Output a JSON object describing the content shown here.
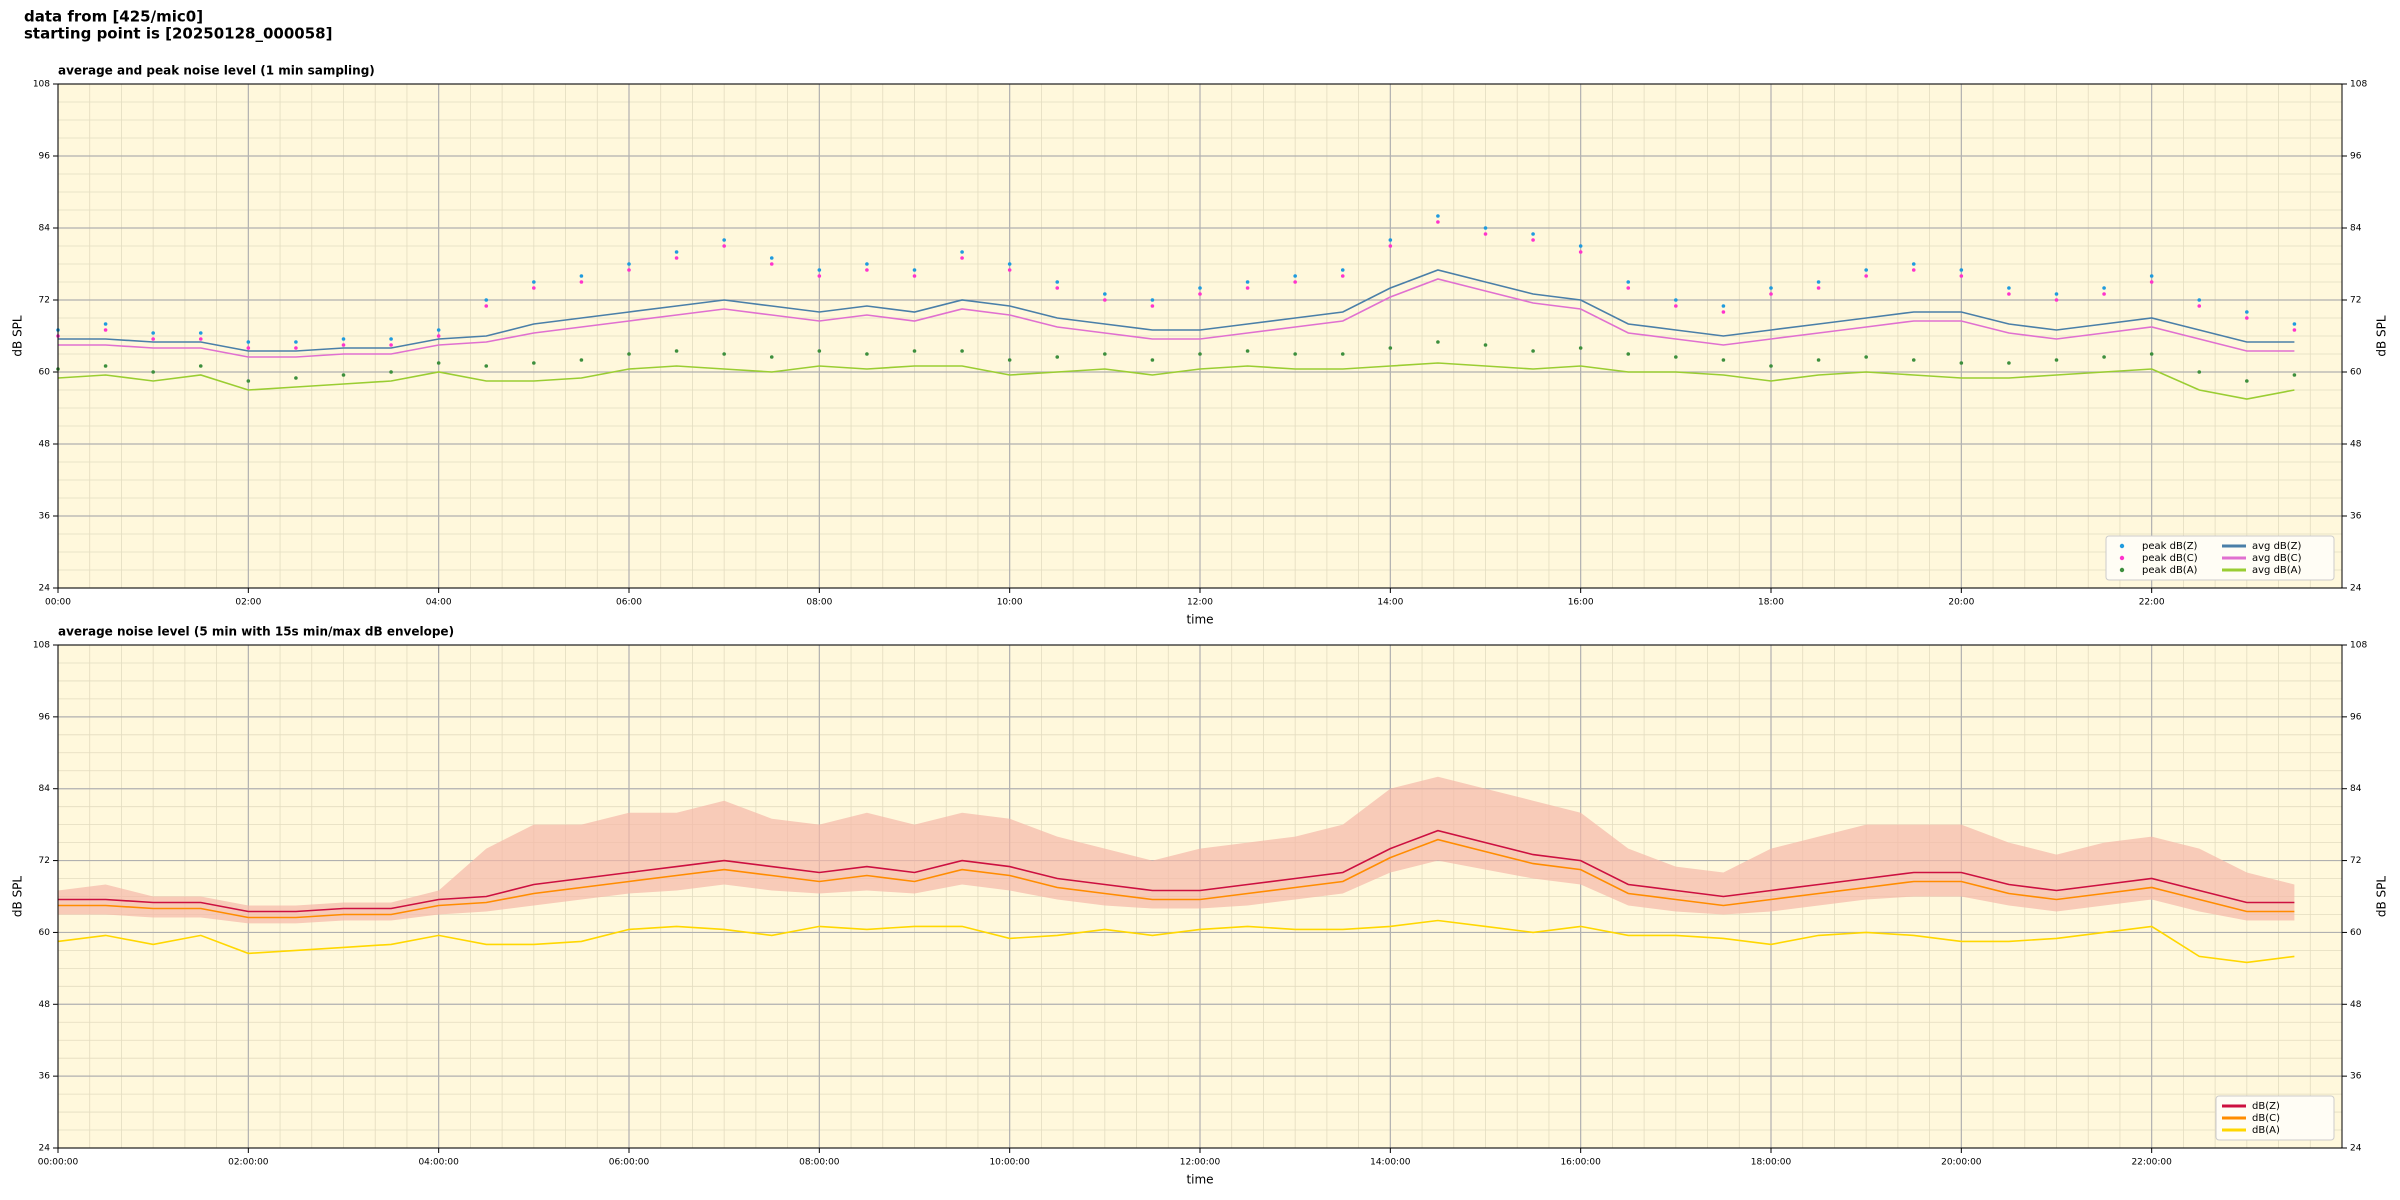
{
  "header": {
    "line1": "data from [425/mic0]",
    "line2": "starting point is [20250128_000058]"
  },
  "chart_data": [
    {
      "type": "line",
      "title": "average and peak noise level (1 min sampling)",
      "x_label": "time",
      "y_label": "dB SPL",
      "mirror_y": true,
      "grid": true,
      "minor_grid": true,
      "background": "#fff8dc",
      "legend": "lower right",
      "legend_columns": 2,
      "xlim": [
        0,
        24
      ],
      "ylim": [
        24,
        108
      ],
      "xticks": [
        {
          "value": 0,
          "label": "00:00"
        },
        {
          "value": 2,
          "label": "02:00"
        },
        {
          "value": 4,
          "label": "04:00"
        },
        {
          "value": 6,
          "label": "06:00"
        },
        {
          "value": 8,
          "label": "08:00"
        },
        {
          "value": 10,
          "label": "10:00"
        },
        {
          "value": 12,
          "label": "12:00"
        },
        {
          "value": 14,
          "label": "14:00"
        },
        {
          "value": 16,
          "label": "16:00"
        },
        {
          "value": 18,
          "label": "18:00"
        },
        {
          "value": 20,
          "label": "20:00"
        },
        {
          "value": 22,
          "label": "22:00"
        }
      ],
      "yticks": [
        24,
        36,
        48,
        60,
        72,
        84,
        96,
        108
      ],
      "x": [
        0,
        0.5,
        1,
        1.5,
        2,
        2.5,
        3,
        3.5,
        4,
        4.5,
        5,
        5.5,
        6,
        6.5,
        7,
        7.5,
        8,
        8.5,
        9,
        9.5,
        10,
        10.5,
        11,
        11.5,
        12,
        12.5,
        13,
        13.5,
        14,
        14.5,
        15,
        15.5,
        16,
        16.5,
        17,
        17.5,
        18,
        18.5,
        19,
        19.5,
        20,
        20.5,
        21,
        21.5,
        22,
        22.5,
        23,
        23.5
      ],
      "series": [
        {
          "name": "peak dB(Z)",
          "style": "dots",
          "color": "#1f9bde",
          "values": [
            67,
            68,
            66.5,
            66.5,
            65,
            65,
            65.5,
            65.5,
            67,
            72,
            75,
            76,
            78,
            80,
            82,
            79,
            77,
            78,
            77,
            80,
            78,
            75,
            73,
            72,
            74,
            75,
            76,
            77,
            82,
            86,
            84,
            83,
            81,
            75,
            72,
            71,
            74,
            75,
            77,
            78,
            77,
            74,
            73,
            74,
            76,
            72,
            70,
            68
          ]
        },
        {
          "name": "peak dB(C)",
          "style": "dots",
          "color": "#ff33cc",
          "values": [
            66,
            67,
            65.5,
            65.5,
            64,
            64,
            64.5,
            64.5,
            66,
            71,
            74,
            75,
            77,
            79,
            81,
            78,
            76,
            77,
            76,
            79,
            77,
            74,
            72,
            71,
            73,
            74,
            75,
            76,
            81,
            85,
            83,
            82,
            80,
            74,
            71,
            70,
            73,
            74,
            76,
            77,
            76,
            73,
            72,
            73,
            75,
            71,
            69,
            67
          ]
        },
        {
          "name": "peak dB(A)",
          "style": "dots",
          "color": "#3d8f3d",
          "values": [
            60.5,
            61,
            60,
            61,
            58.5,
            59,
            59.5,
            60,
            61.5,
            61,
            61.5,
            62,
            63,
            63.5,
            63,
            62.5,
            63.5,
            63,
            63.5,
            63.5,
            62,
            62.5,
            63,
            62,
            63,
            63.5,
            63,
            63,
            64,
            65,
            64.5,
            63.5,
            64,
            63,
            62.5,
            62,
            61,
            62,
            62.5,
            62,
            61.5,
            61.5,
            62,
            62.5,
            63,
            60,
            58.5,
            59.5
          ]
        },
        {
          "name": "avg dB(Z)",
          "style": "line",
          "color": "#4a7fa8",
          "values": [
            65.5,
            65.5,
            65,
            65,
            63.5,
            63.5,
            64,
            64,
            65.5,
            66,
            68,
            69,
            70,
            71,
            72,
            71,
            70,
            71,
            70,
            72,
            71,
            69,
            68,
            67,
            67,
            68,
            69,
            70,
            74,
            77,
            75,
            73,
            72,
            68,
            67,
            66,
            67,
            68,
            69,
            70,
            70,
            68,
            67,
            68,
            69,
            67,
            65,
            65
          ]
        },
        {
          "name": "avg dB(C)",
          "style": "line",
          "color": "#e070d0",
          "values": [
            64.5,
            64.5,
            64,
            64,
            62.5,
            62.5,
            63,
            63,
            64.5,
            65,
            66.5,
            67.5,
            68.5,
            69.5,
            70.5,
            69.5,
            68.5,
            69.5,
            68.5,
            70.5,
            69.5,
            67.5,
            66.5,
            65.5,
            65.5,
            66.5,
            67.5,
            68.5,
            72.5,
            75.5,
            73.5,
            71.5,
            70.5,
            66.5,
            65.5,
            64.5,
            65.5,
            66.5,
            67.5,
            68.5,
            68.5,
            66.5,
            65.5,
            66.5,
            67.5,
            65.5,
            63.5,
            63.5
          ]
        },
        {
          "name": "avg dB(A)",
          "style": "line",
          "color": "#9acd32",
          "values": [
            59,
            59.5,
            58.5,
            59.5,
            57,
            57.5,
            58,
            58.5,
            60,
            58.5,
            58.5,
            59,
            60.5,
            61,
            60.5,
            60,
            61,
            60.5,
            61,
            61,
            59.5,
            60,
            60.5,
            59.5,
            60.5,
            61,
            60.5,
            60.5,
            61,
            61.5,
            61,
            60.5,
            61,
            60,
            60,
            59.5,
            58.5,
            59.5,
            60,
            59.5,
            59,
            59,
            59.5,
            60,
            60.5,
            57,
            55.5,
            57
          ]
        }
      ]
    },
    {
      "type": "line",
      "title": "average noise level (5 min with 15s min/max dB envelope)",
      "x_label": "time",
      "y_label": "dB SPL",
      "mirror_y": true,
      "grid": true,
      "minor_grid": true,
      "background": "#fff8dc",
      "legend": "lower right",
      "legend_columns": 1,
      "xlim": [
        0,
        24
      ],
      "ylim": [
        24,
        108
      ],
      "xticks": [
        {
          "value": 0,
          "label": "00:00:00"
        },
        {
          "value": 2,
          "label": "02:00:00"
        },
        {
          "value": 4,
          "label": "04:00:00"
        },
        {
          "value": 6,
          "label": "06:00:00"
        },
        {
          "value": 8,
          "label": "08:00:00"
        },
        {
          "value": 10,
          "label": "10:00:00"
        },
        {
          "value": 12,
          "label": "12:00:00"
        },
        {
          "value": 14,
          "label": "14:00:00"
        },
        {
          "value": 16,
          "label": "16:00:00"
        },
        {
          "value": 18,
          "label": "18:00:00"
        },
        {
          "value": 20,
          "label": "20:00:00"
        },
        {
          "value": 22,
          "label": "22:00:00"
        }
      ],
      "yticks": [
        24,
        36,
        48,
        60,
        72,
        84,
        96,
        108
      ],
      "x": [
        0,
        0.5,
        1,
        1.5,
        2,
        2.5,
        3,
        3.5,
        4,
        4.5,
        5,
        5.5,
        6,
        6.5,
        7,
        7.5,
        8,
        8.5,
        9,
        9.5,
        10,
        10.5,
        11,
        11.5,
        12,
        12.5,
        13,
        13.5,
        14,
        14.5,
        15,
        15.5,
        16,
        16.5,
        17,
        17.5,
        18,
        18.5,
        19,
        19.5,
        20,
        20.5,
        21,
        21.5,
        22,
        22.5,
        23,
        23.5
      ],
      "envelope": {
        "color": "#f5b8a8",
        "max": [
          67,
          68,
          66,
          66,
          64.5,
          64.5,
          65,
          65,
          67,
          74,
          78,
          78,
          80,
          80,
          82,
          79,
          78,
          80,
          78,
          80,
          79,
          76,
          74,
          72,
          74,
          75,
          76,
          78,
          84,
          86,
          84,
          82,
          80,
          74,
          71,
          70,
          74,
          76,
          78,
          78,
          78,
          75,
          73,
          75,
          76,
          74,
          70,
          68
        ],
        "min": [
          63,
          63,
          62.5,
          62.5,
          61.5,
          61.5,
          62,
          62,
          63,
          63.5,
          64.5,
          65.5,
          66.5,
          67,
          68,
          67,
          66.5,
          67,
          66.5,
          68,
          67,
          65.5,
          64.5,
          64,
          64,
          64.5,
          65.5,
          66.5,
          70,
          72,
          70.5,
          69,
          68,
          64.5,
          63.5,
          63,
          63.5,
          64.5,
          65.5,
          66,
          66,
          64.5,
          63.5,
          64.5,
          65.5,
          63.5,
          62,
          62
        ]
      },
      "series": [
        {
          "name": "dB(Z)",
          "style": "line",
          "color": "#cc1040",
          "values": [
            65.5,
            65.5,
            65,
            65,
            63.5,
            63.5,
            64,
            64,
            65.5,
            66,
            68,
            69,
            70,
            71,
            72,
            71,
            70,
            71,
            70,
            72,
            71,
            69,
            68,
            67,
            67,
            68,
            69,
            70,
            74,
            77,
            75,
            73,
            72,
            68,
            67,
            66,
            67,
            68,
            69,
            70,
            70,
            68,
            67,
            68,
            69,
            67,
            65,
            65
          ]
        },
        {
          "name": "dB(C)",
          "style": "line",
          "color": "#ff8c00",
          "values": [
            64.5,
            64.5,
            64,
            64,
            62.5,
            62.5,
            63,
            63,
            64.5,
            65,
            66.5,
            67.5,
            68.5,
            69.5,
            70.5,
            69.5,
            68.5,
            69.5,
            68.5,
            70.5,
            69.5,
            67.5,
            66.5,
            65.5,
            65.5,
            66.5,
            67.5,
            68.5,
            72.5,
            75.5,
            73.5,
            71.5,
            70.5,
            66.5,
            65.5,
            64.5,
            65.5,
            66.5,
            67.5,
            68.5,
            68.5,
            66.5,
            65.5,
            66.5,
            67.5,
            65.5,
            63.5,
            63.5
          ]
        },
        {
          "name": "dB(A)",
          "style": "line",
          "color": "#ffd700",
          "values": [
            58.5,
            59.5,
            58,
            59.5,
            56.5,
            57,
            57.5,
            58,
            59.5,
            58,
            58,
            58.5,
            60.5,
            61,
            60.5,
            59.5,
            61,
            60.5,
            61,
            61,
            59,
            59.5,
            60.5,
            59.5,
            60.5,
            61,
            60.5,
            60.5,
            61,
            62,
            61,
            60,
            61,
            59.5,
            59.5,
            59,
            58,
            59.5,
            60,
            59.5,
            58.5,
            58.5,
            59,
            60,
            61,
            56,
            55,
            56
          ]
        }
      ]
    }
  ]
}
